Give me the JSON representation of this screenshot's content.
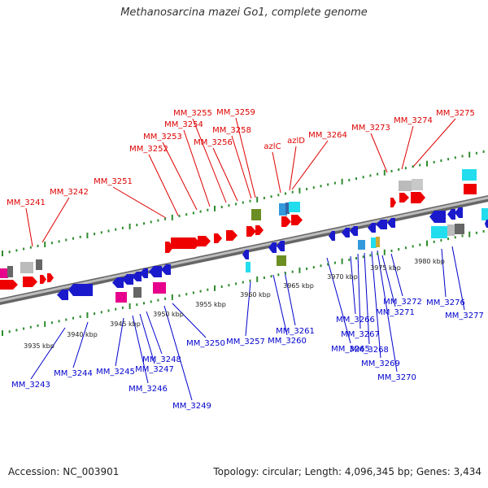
{
  "title": "Methanosarcina mazei Go1, complete genome",
  "footer": {
    "accession": "Accession: NC_003901",
    "summary": "Topology: circular; Length: 4,096,345 bp; Genes: 3,434"
  },
  "colors": {
    "plus_label": "#dd0000",
    "minus_label": "#0000cc",
    "tick": "#2e8b2e",
    "backbone": "#9a9a9a"
  },
  "scale": [
    "3935 kbp",
    "3940 kbp",
    "3945 kbp",
    "3950 kbp",
    "3955 kbp",
    "3960 kbp",
    "3965 kbp",
    "3970 kbp",
    "3975 kbp",
    "3980 kbp"
  ],
  "plus_genes": [
    "MM_3241",
    "MM_3242",
    "MM_3251",
    "MM_3252",
    "MM_3253",
    "MM_3254",
    "MM_3255",
    "MM_3256",
    "MM_3258",
    "MM_3259",
    "azlC",
    "azlD",
    "MM_3264",
    "MM_3273",
    "MM_3274",
    "MM_3275"
  ],
  "minus_genes": [
    "MM_3243",
    "MM_3244",
    "MM_3245",
    "MM_3246",
    "MM_3247",
    "MM_3248",
    "MM_3249",
    "MM_3250",
    "MM_3257",
    "MM_3260",
    "MM_3261",
    "MM_3265",
    "MM_3266",
    "MM_3267",
    "MM_3268",
    "MM_3269",
    "MM_3270",
    "MM_3271",
    "MM_3272",
    "MM_3276",
    "MM_3277"
  ]
}
